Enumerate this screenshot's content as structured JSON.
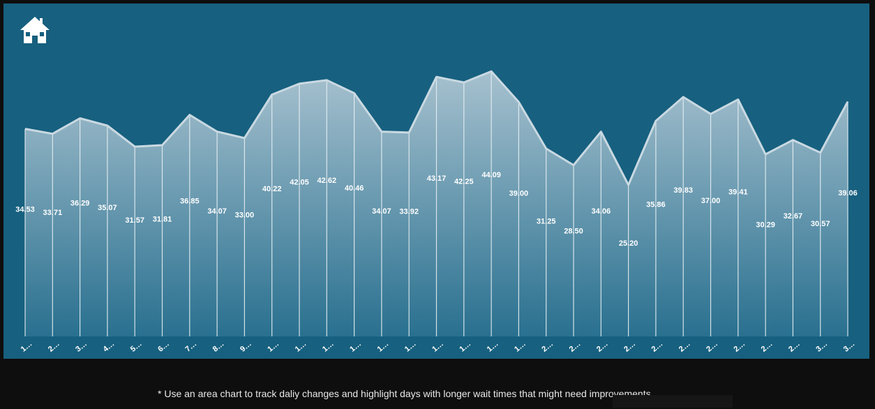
{
  "chart_data": {
    "type": "area",
    "categories": [
      "1…",
      "2…",
      "3…",
      "4…",
      "5…",
      "6…",
      "7…",
      "8…",
      "9…",
      "1…",
      "1…",
      "1…",
      "1…",
      "1…",
      "1…",
      "1…",
      "1…",
      "1…",
      "1…",
      "2…",
      "2…",
      "2…",
      "2…",
      "2…",
      "2…",
      "2…",
      "2…",
      "2…",
      "2…",
      "3…",
      "3…"
    ],
    "values": [
      34.53,
      33.71,
      36.29,
      35.07,
      31.57,
      31.81,
      36.85,
      34.07,
      33.0,
      40.22,
      42.05,
      42.62,
      40.46,
      34.07,
      33.92,
      43.17,
      42.25,
      44.09,
      39.0,
      31.25,
      28.5,
      34.06,
      25.2,
      35.86,
      39.83,
      37.0,
      39.41,
      30.29,
      32.67,
      30.57,
      39.06
    ],
    "value_labels": [
      "34.53",
      "33.71",
      "36.29",
      "35.07",
      "31.57",
      "31.81",
      "36.85",
      "34.07",
      "33.00",
      "40.22",
      "42.05",
      "42.62",
      "40.46",
      "34.07",
      "33.92",
      "43.17",
      "42.25",
      "44.09",
      "39.00",
      "31.25",
      "28.50",
      "34.06",
      "25.20",
      "35.86",
      "39.83",
      "37.00",
      "39.41",
      "30.29",
      "32.67",
      "30.57",
      "39.06"
    ],
    "ylim": [
      0,
      49
    ],
    "grid": false,
    "legend": "none",
    "title": "",
    "xlabel": "",
    "ylabel": ""
  },
  "colors": {
    "panel_bg": "#17607f",
    "area_top": "#aec6d3",
    "area_bottom": "#2a7190",
    "line": "#c9d9e2",
    "drop_line": "#e6eef2",
    "label": "#ffffff"
  },
  "icons": {
    "home": "home-icon"
  },
  "footnote": "* Use an area chart to track daliy changes and highlight days with longer wait times that might need improvements."
}
